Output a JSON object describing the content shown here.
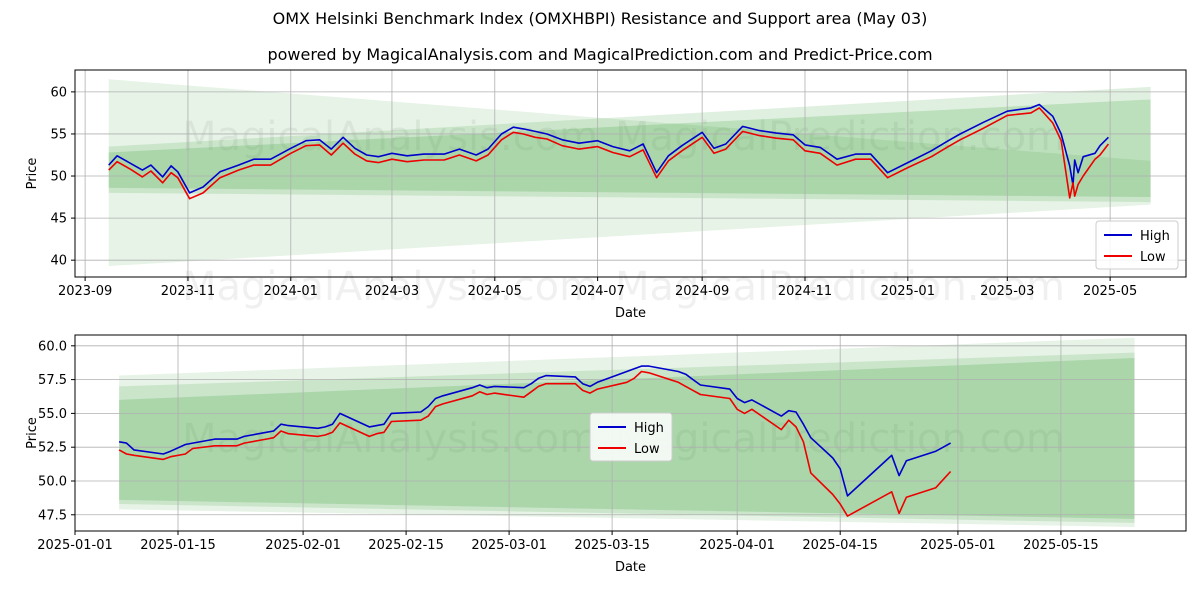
{
  "title": "OMX Helsinki Benchmark Index (OMXHBPI) Resistance and Support area (May 03)",
  "subtitle": "powered by MagicalAnalysis.com and MagicalPrediction.com and Predict-Price.com",
  "watermarks": [
    "MagicalAnalysis.com",
    "MagicalPrediction.com"
  ],
  "colors": {
    "high": "#0000cc",
    "low": "#ee0000",
    "band": "#2e9a2e",
    "grid": "#b0b0b0"
  },
  "chart_data": [
    {
      "type": "line",
      "xlabel": "Date",
      "ylabel": "Price",
      "x_axis": "date",
      "xlim": [
        "2023-08-26",
        "2025-06-15"
      ],
      "ylim": [
        38,
        62.6
      ],
      "xticks": [
        "2023-09",
        "2023-11",
        "2024-01",
        "2024-03",
        "2024-05",
        "2024-07",
        "2024-09",
        "2024-11",
        "2025-01",
        "2025-03",
        "2025-05"
      ],
      "xtick_dates": [
        "2023-09-01",
        "2023-11-01",
        "2024-01-01",
        "2024-03-01",
        "2024-05-01",
        "2024-07-01",
        "2024-09-01",
        "2024-11-01",
        "2025-01-01",
        "2025-03-01",
        "2025-05-01"
      ],
      "yticks": [
        40,
        45,
        50,
        55,
        60
      ],
      "grid": true,
      "legend": "lower-right",
      "bands": [
        {
          "start": "2023-09-15",
          "end": "2025-05-25",
          "upper": [
            61.5,
            51.8
          ],
          "lower": [
            39.3,
            46.6
          ],
          "opacity": 0.12
        },
        {
          "start": "2023-09-15",
          "end": "2025-05-25",
          "upper": [
            53.5,
            60.6
          ],
          "lower": [
            48.0,
            46.9
          ],
          "opacity": 0.15
        },
        {
          "start": "2023-09-15",
          "end": "2025-05-25",
          "upper": [
            52.8,
            59.1
          ],
          "lower": [
            48.6,
            47.5
          ],
          "opacity": 0.2
        }
      ],
      "series": [
        {
          "name": "High",
          "x": [
            "2023-09-15",
            "2023-09-20",
            "2023-09-28",
            "2023-10-05",
            "2023-10-10",
            "2023-10-17",
            "2023-10-22",
            "2023-10-26",
            "2023-11-02",
            "2023-11-10",
            "2023-11-20",
            "2023-12-01",
            "2023-12-10",
            "2023-12-20",
            "2024-01-01",
            "2024-01-10",
            "2024-01-18",
            "2024-01-25",
            "2024-02-01",
            "2024-02-08",
            "2024-02-15",
            "2024-02-22",
            "2024-03-01",
            "2024-03-10",
            "2024-03-20",
            "2024-04-01",
            "2024-04-10",
            "2024-04-20",
            "2024-04-27",
            "2024-05-05",
            "2024-05-12",
            "2024-05-18",
            "2024-05-25",
            "2024-06-01",
            "2024-06-10",
            "2024-06-20",
            "2024-07-01",
            "2024-07-10",
            "2024-07-20",
            "2024-07-28",
            "2024-08-05",
            "2024-08-12",
            "2024-08-20",
            "2024-09-01",
            "2024-09-08",
            "2024-09-15",
            "2024-09-25",
            "2024-10-05",
            "2024-10-15",
            "2024-10-25",
            "2024-11-01",
            "2024-11-10",
            "2024-11-20",
            "2024-12-01",
            "2024-12-10",
            "2024-12-20",
            "2025-01-01",
            "2025-01-15",
            "2025-01-25",
            "2025-02-01",
            "2025-02-15",
            "2025-03-01",
            "2025-03-15",
            "2025-03-20",
            "2025-03-28",
            "2025-04-02",
            "2025-04-07",
            "2025-04-09",
            "2025-04-10",
            "2025-04-12",
            "2025-04-15",
            "2025-04-22",
            "2025-04-25",
            "2025-04-30"
          ],
          "y": [
            51.3,
            52.4,
            51.5,
            50.7,
            51.3,
            49.9,
            51.2,
            50.5,
            48.0,
            48.7,
            50.5,
            51.3,
            52.0,
            52.0,
            53.3,
            54.2,
            54.3,
            53.2,
            54.6,
            53.3,
            52.5,
            52.3,
            52.7,
            52.4,
            52.6,
            52.6,
            53.2,
            52.5,
            53.2,
            55.0,
            55.8,
            55.6,
            55.3,
            55.0,
            54.3,
            53.9,
            54.2,
            53.5,
            53.0,
            53.8,
            50.4,
            52.4,
            53.6,
            55.2,
            53.3,
            53.8,
            55.9,
            55.4,
            55.1,
            54.9,
            53.7,
            53.4,
            52.0,
            52.6,
            52.6,
            50.4,
            51.6,
            53.0,
            54.2,
            55.0,
            56.4,
            57.7,
            58.1,
            58.5,
            57.1,
            55.0,
            51.2,
            48.9,
            51.9,
            50.4,
            52.3,
            52.7,
            53.6,
            54.6
          ]
        },
        {
          "name": "Low",
          "x": [
            "2023-09-15",
            "2023-09-20",
            "2023-09-28",
            "2023-10-05",
            "2023-10-10",
            "2023-10-17",
            "2023-10-22",
            "2023-10-26",
            "2023-11-02",
            "2023-11-10",
            "2023-11-20",
            "2023-12-01",
            "2023-12-10",
            "2023-12-20",
            "2024-01-01",
            "2024-01-10",
            "2024-01-18",
            "2024-01-25",
            "2024-02-01",
            "2024-02-08",
            "2024-02-15",
            "2024-02-22",
            "2024-03-01",
            "2024-03-10",
            "2024-03-20",
            "2024-04-01",
            "2024-04-10",
            "2024-04-20",
            "2024-04-27",
            "2024-05-05",
            "2024-05-12",
            "2024-05-18",
            "2024-05-25",
            "2024-06-01",
            "2024-06-10",
            "2024-06-20",
            "2024-07-01",
            "2024-07-10",
            "2024-07-20",
            "2024-07-28",
            "2024-08-05",
            "2024-08-12",
            "2024-08-20",
            "2024-09-01",
            "2024-09-08",
            "2024-09-15",
            "2024-09-25",
            "2024-10-05",
            "2024-10-15",
            "2024-10-25",
            "2024-11-01",
            "2024-11-10",
            "2024-11-20",
            "2024-12-01",
            "2024-12-10",
            "2024-12-20",
            "2025-01-01",
            "2025-01-15",
            "2025-01-25",
            "2025-02-01",
            "2025-02-15",
            "2025-03-01",
            "2025-03-15",
            "2025-03-20",
            "2025-03-28",
            "2025-04-02",
            "2025-04-07",
            "2025-04-09",
            "2025-04-10",
            "2025-04-12",
            "2025-04-15",
            "2025-04-22",
            "2025-04-25",
            "2025-04-30"
          ],
          "y": [
            50.7,
            51.7,
            50.8,
            49.9,
            50.6,
            49.2,
            50.4,
            49.8,
            47.3,
            48.0,
            49.8,
            50.7,
            51.3,
            51.3,
            52.7,
            53.6,
            53.7,
            52.5,
            53.9,
            52.6,
            51.8,
            51.6,
            52.0,
            51.7,
            51.9,
            51.9,
            52.5,
            51.8,
            52.5,
            54.3,
            55.2,
            55.0,
            54.6,
            54.4,
            53.6,
            53.2,
            53.5,
            52.8,
            52.3,
            53.1,
            49.8,
            51.8,
            53.0,
            54.6,
            52.7,
            53.2,
            55.3,
            54.8,
            54.5,
            54.3,
            53.0,
            52.7,
            51.3,
            52.0,
            52.0,
            49.8,
            51.0,
            52.3,
            53.5,
            54.3,
            55.7,
            57.2,
            57.5,
            58.1,
            56.3,
            54.2,
            47.4,
            49.2,
            47.6,
            49.0,
            50.0,
            52.0,
            52.5,
            53.8
          ]
        }
      ]
    },
    {
      "type": "line",
      "xlabel": "Date",
      "ylabel": "Price",
      "x_axis": "date",
      "xlim": [
        "2025-01-01",
        "2025-06-01"
      ],
      "ylim": [
        46.3,
        60.8
      ],
      "xticks": [
        "2025-01-01",
        "2025-01-15",
        "2025-02-01",
        "2025-02-15",
        "2025-03-01",
        "2025-03-15",
        "2025-04-01",
        "2025-04-15",
        "2025-05-01",
        "2025-05-15"
      ],
      "xtick_dates": [
        "2025-01-01",
        "2025-01-15",
        "2025-02-01",
        "2025-02-15",
        "2025-03-01",
        "2025-03-15",
        "2025-04-01",
        "2025-04-15",
        "2025-05-01",
        "2025-05-15"
      ],
      "yticks": [
        "47.5",
        "50.0",
        "52.5",
        "55.0",
        "57.5",
        "60.0"
      ],
      "grid": true,
      "legend": "center",
      "bands": [
        {
          "start": "2025-01-07",
          "end": "2025-05-25",
          "upper": [
            57.8,
            60.6
          ],
          "lower": [
            47.9,
            46.6
          ],
          "opacity": 0.12
        },
        {
          "start": "2025-01-07",
          "end": "2025-05-25",
          "upper": [
            57.0,
            59.5
          ],
          "lower": [
            48.3,
            46.9
          ],
          "opacity": 0.15
        },
        {
          "start": "2025-01-07",
          "end": "2025-05-25",
          "upper": [
            56.0,
            59.1
          ],
          "lower": [
            48.6,
            47.2
          ],
          "opacity": 0.2
        }
      ],
      "series": [
        {
          "name": "High",
          "x": [
            "2025-01-07",
            "2025-01-08",
            "2025-01-09",
            "2025-01-13",
            "2025-01-14",
            "2025-01-16",
            "2025-01-17",
            "2025-01-20",
            "2025-01-21",
            "2025-01-23",
            "2025-01-24",
            "2025-01-27",
            "2025-01-28",
            "2025-01-29",
            "2025-01-30",
            "2025-02-03",
            "2025-02-04",
            "2025-02-05",
            "2025-02-06",
            "2025-02-10",
            "2025-02-11",
            "2025-02-12",
            "2025-02-13",
            "2025-02-17",
            "2025-02-18",
            "2025-02-19",
            "2025-02-20",
            "2025-02-24",
            "2025-02-25",
            "2025-02-26",
            "2025-02-27",
            "2025-03-03",
            "2025-03-04",
            "2025-03-05",
            "2025-03-06",
            "2025-03-10",
            "2025-03-11",
            "2025-03-12",
            "2025-03-13",
            "2025-03-17",
            "2025-03-18",
            "2025-03-19",
            "2025-03-20",
            "2025-03-24",
            "2025-03-25",
            "2025-03-26",
            "2025-03-27",
            "2025-03-31",
            "2025-04-01",
            "2025-04-02",
            "2025-04-03",
            "2025-04-07",
            "2025-04-08",
            "2025-04-09",
            "2025-04-10",
            "2025-04-11",
            "2025-04-14",
            "2025-04-15",
            "2025-04-16",
            "2025-04-22",
            "2025-04-23",
            "2025-04-24",
            "2025-04-28",
            "2025-04-29",
            "2025-04-30"
          ],
          "y": [
            52.9,
            52.8,
            52.3,
            52.0,
            52.2,
            52.7,
            52.8,
            53.1,
            53.1,
            53.1,
            53.3,
            53.6,
            53.7,
            54.2,
            54.1,
            53.9,
            54.0,
            54.2,
            55.0,
            54.0,
            54.1,
            54.2,
            55.0,
            55.1,
            55.5,
            56.1,
            56.3,
            56.9,
            57.1,
            56.9,
            57.0,
            56.9,
            57.2,
            57.6,
            57.8,
            57.7,
            57.2,
            57.0,
            57.3,
            58.1,
            58.3,
            58.5,
            58.5,
            58.1,
            57.9,
            57.5,
            57.1,
            56.8,
            56.1,
            55.8,
            56.0,
            54.8,
            55.2,
            55.1,
            54.2,
            53.2,
            51.7,
            50.9,
            48.9,
            51.9,
            50.4,
            51.5,
            52.2,
            52.5,
            52.8
          ]
        },
        {
          "name": "Low",
          "x": [
            "2025-01-07",
            "2025-01-08",
            "2025-01-09",
            "2025-01-13",
            "2025-01-14",
            "2025-01-16",
            "2025-01-17",
            "2025-01-20",
            "2025-01-21",
            "2025-01-23",
            "2025-01-24",
            "2025-01-27",
            "2025-01-28",
            "2025-01-29",
            "2025-01-30",
            "2025-02-03",
            "2025-02-04",
            "2025-02-05",
            "2025-02-06",
            "2025-02-10",
            "2025-02-11",
            "2025-02-12",
            "2025-02-13",
            "2025-02-17",
            "2025-02-18",
            "2025-02-19",
            "2025-02-20",
            "2025-02-24",
            "2025-02-25",
            "2025-02-26",
            "2025-02-27",
            "2025-03-03",
            "2025-03-04",
            "2025-03-05",
            "2025-03-06",
            "2025-03-10",
            "2025-03-11",
            "2025-03-12",
            "2025-03-13",
            "2025-03-17",
            "2025-03-18",
            "2025-03-19",
            "2025-03-20",
            "2025-03-24",
            "2025-03-25",
            "2025-03-26",
            "2025-03-27",
            "2025-03-31",
            "2025-04-01",
            "2025-04-02",
            "2025-04-03",
            "2025-04-07",
            "2025-04-08",
            "2025-04-09",
            "2025-04-10",
            "2025-04-11",
            "2025-04-14",
            "2025-04-15",
            "2025-04-16",
            "2025-04-22",
            "2025-04-23",
            "2025-04-24",
            "2025-04-28",
            "2025-04-29",
            "2025-04-30"
          ],
          "y": [
            52.3,
            52.0,
            51.9,
            51.6,
            51.8,
            52.0,
            52.4,
            52.6,
            52.6,
            52.6,
            52.8,
            53.1,
            53.2,
            53.7,
            53.5,
            53.3,
            53.4,
            53.6,
            54.3,
            53.3,
            53.5,
            53.6,
            54.4,
            54.5,
            54.8,
            55.5,
            55.7,
            56.3,
            56.6,
            56.4,
            56.5,
            56.2,
            56.6,
            57.0,
            57.2,
            57.2,
            56.7,
            56.5,
            56.8,
            57.3,
            57.6,
            58.1,
            58.0,
            57.3,
            57.0,
            56.7,
            56.4,
            56.1,
            55.3,
            55.0,
            55.3,
            53.8,
            54.5,
            54.0,
            52.9,
            50.6,
            49.0,
            48.3,
            47.4,
            49.2,
            47.6,
            48.8,
            49.5,
            50.1,
            50.7
          ]
        }
      ]
    }
  ]
}
